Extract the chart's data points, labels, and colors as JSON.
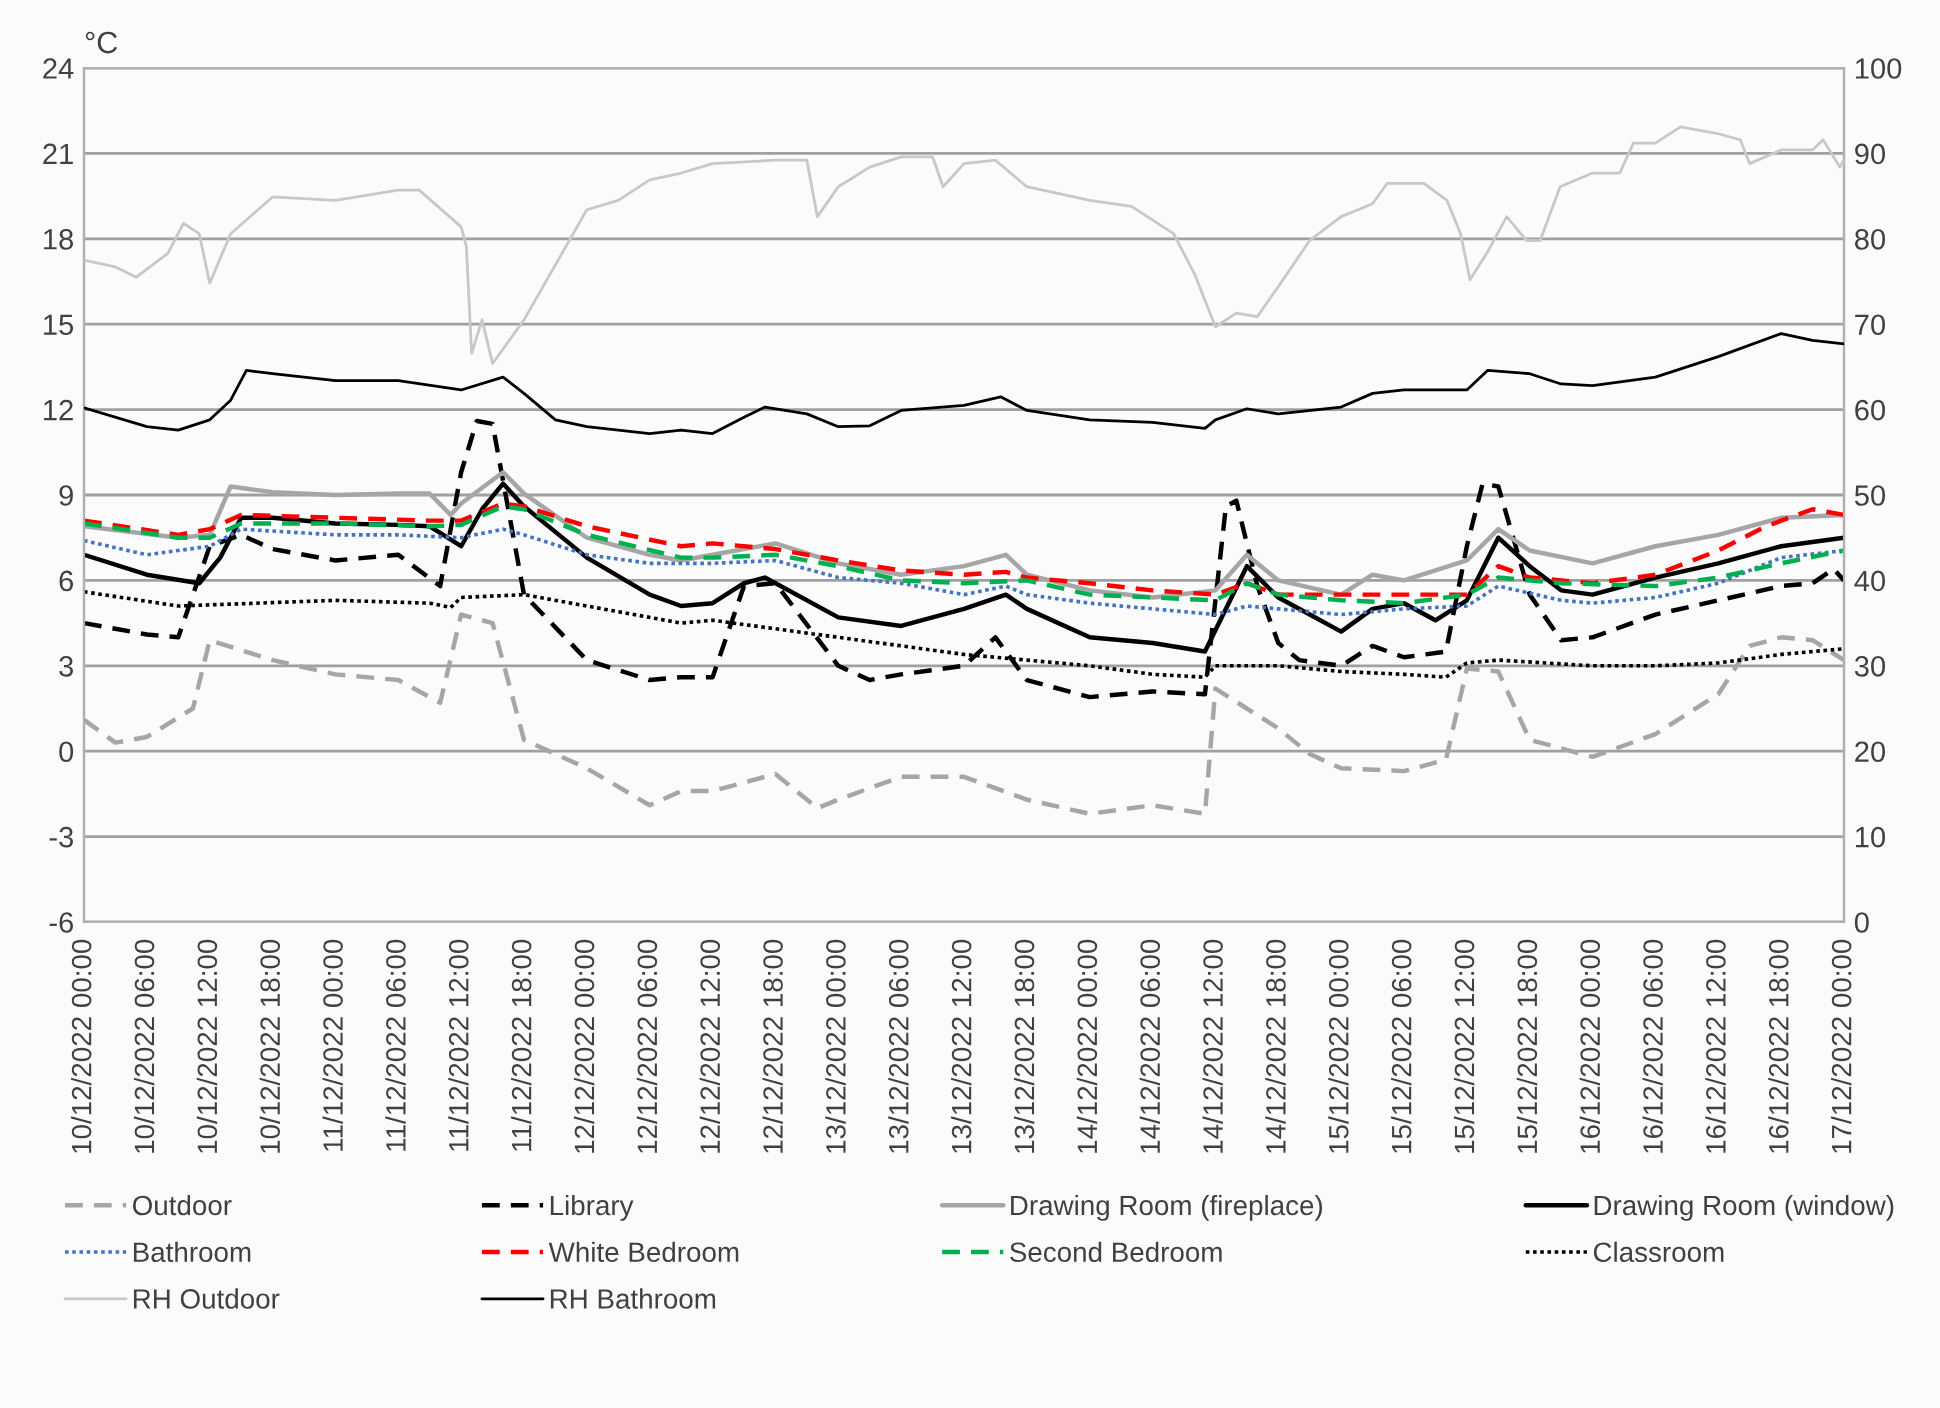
{
  "chart_data": {
    "type": "line",
    "ylabel": "°C",
    "xlim": [
      "2022-12-10T00:00",
      "2022-12-17T00:00"
    ],
    "xticks": [
      {
        "value": "2022-12-10T00:00",
        "label": "10/12/2022 00:00"
      },
      {
        "value": "2022-12-10T06:00",
        "label": "10/12/2022 06:00"
      },
      {
        "value": "2022-12-10T12:00",
        "label": "10/12/2022 12:00"
      },
      {
        "value": "2022-12-10T18:00",
        "label": "10/12/2022 18:00"
      },
      {
        "value": "2022-12-11T00:00",
        "label": "11/12/2022 00:00"
      },
      {
        "value": "2022-12-11T06:00",
        "label": "11/12/2022 06:00"
      },
      {
        "value": "2022-12-11T12:00",
        "label": "11/12/2022 12:00"
      },
      {
        "value": "2022-12-11T18:00",
        "label": "11/12/2022 18:00"
      },
      {
        "value": "2022-12-12T00:00",
        "label": "12/12/2022 00:00"
      },
      {
        "value": "2022-12-12T06:00",
        "label": "12/12/2022 06:00"
      },
      {
        "value": "2022-12-12T12:00",
        "label": "12/12/2022 12:00"
      },
      {
        "value": "2022-12-12T18:00",
        "label": "12/12/2022 18:00"
      },
      {
        "value": "2022-12-13T00:00",
        "label": "13/12/2022 00:00"
      },
      {
        "value": "2022-12-13T06:00",
        "label": "13/12/2022 06:00"
      },
      {
        "value": "2022-12-13T12:00",
        "label": "13/12/2022 12:00"
      },
      {
        "value": "2022-12-13T18:00",
        "label": "13/12/2022 18:00"
      },
      {
        "value": "2022-12-14T00:00",
        "label": "14/12/2022 00:00"
      },
      {
        "value": "2022-12-14T06:00",
        "label": "14/12/2022 06:00"
      },
      {
        "value": "2022-12-14T12:00",
        "label": "14/12/2022 12:00"
      },
      {
        "value": "2022-12-14T18:00",
        "label": "14/12/2022 18:00"
      },
      {
        "value": "2022-12-15T00:00",
        "label": "15/12/2022 00:00"
      },
      {
        "value": "2022-12-15T06:00",
        "label": "15/12/2022 06:00"
      },
      {
        "value": "2022-12-15T12:00",
        "label": "15/12/2022 12:00"
      },
      {
        "value": "2022-12-15T18:00",
        "label": "15/12/2022 18:00"
      },
      {
        "value": "2022-12-16T00:00",
        "label": "16/12/2022 00:00"
      },
      {
        "value": "2022-12-16T06:00",
        "label": "16/12/2022 06:00"
      },
      {
        "value": "2022-12-16T12:00",
        "label": "16/12/2022 12:00"
      },
      {
        "value": "2022-12-16T18:00",
        "label": "16/12/2022 18:00"
      },
      {
        "value": "2022-12-17T00:00",
        "label": "17/12/2022 00:00"
      }
    ],
    "ylim": [
      -6,
      24
    ],
    "yticks": [
      -6,
      -3,
      0,
      3,
      6,
      9,
      12,
      15,
      18,
      21,
      24
    ],
    "y2lim": [
      0,
      100
    ],
    "y2ticks": [
      0,
      10,
      20,
      30,
      40,
      50,
      60,
      70,
      80,
      90,
      100
    ],
    "grid": "y",
    "legend": "bottom",
    "series": [
      {
        "name": "Outdoor",
        "color": "#a6a6a6",
        "line_style": "dashed",
        "x": [
          "2022-12-10T00:00",
          "2022-12-10T03:00",
          "2022-12-10T06:00",
          "2022-12-10T10:24",
          "2022-12-10T12:00",
          "2022-12-10T18:00",
          "2022-12-11T00:00",
          "2022-12-11T06:00",
          "2022-12-11T10:00",
          "2022-12-11T12:00",
          "2022-12-11T15:00",
          "2022-12-11T18:00",
          "2022-12-12T00:00",
          "2022-12-12T06:00",
          "2022-12-12T09:00",
          "2022-12-12T12:00",
          "2022-12-12T18:00",
          "2022-12-12T22:00",
          "2022-12-13T00:00",
          "2022-12-13T06:00",
          "2022-12-13T12:00",
          "2022-12-13T18:00",
          "2022-12-14T00:00",
          "2022-12-14T06:00",
          "2022-12-14T11:00",
          "2022-12-14T12:00",
          "2022-12-14T15:00",
          "2022-12-14T18:00",
          "2022-12-14T21:00",
          "2022-12-15T00:00",
          "2022-12-15T06:00",
          "2022-12-15T10:00",
          "2022-12-15T12:00",
          "2022-12-15T15:00",
          "2022-12-15T18:00",
          "2022-12-15T21:00",
          "2022-12-16T00:00",
          "2022-12-16T06:00",
          "2022-12-16T12:00",
          "2022-12-16T15:00",
          "2022-12-16T18:00",
          "2022-12-16T21:00",
          "2022-12-17T00:00"
        ],
        "values": [
          1.1,
          0.3,
          0.5,
          1.5,
          3.9,
          3.2,
          2.7,
          2.5,
          1.7,
          4.8,
          4.5,
          0.4,
          -0.6,
          -1.9,
          -1.4,
          -1.4,
          -0.8,
          -2.0,
          -1.7,
          -0.9,
          -0.9,
          -1.7,
          -2.2,
          -1.9,
          -2.2,
          2.2,
          1.5,
          0.8,
          -0.1,
          -0.6,
          -0.7,
          -0.3,
          2.9,
          2.8,
          0.4,
          0.1,
          -0.2,
          0.6,
          2.0,
          3.7,
          4.0,
          3.9,
          3.2
        ]
      },
      {
        "name": "Library",
        "color": "#000000",
        "line_style": "dashed",
        "x": [
          "2022-12-10T00:00",
          "2022-12-10T06:00",
          "2022-12-10T09:00",
          "2022-12-10T12:00",
          "2022-12-10T15:00",
          "2022-12-10T18:00",
          "2022-12-11T00:00",
          "2022-12-11T06:00",
          "2022-12-11T10:00",
          "2022-12-11T12:00",
          "2022-12-11T13:30",
          "2022-12-11T15:00",
          "2022-12-11T18:00",
          "2022-12-12T00:00",
          "2022-12-12T06:00",
          "2022-12-12T09:00",
          "2022-12-12T12:00",
          "2022-12-12T15:00",
          "2022-12-12T18:00",
          "2022-12-13T00:00",
          "2022-12-13T03:00",
          "2022-12-13T06:00",
          "2022-12-13T12:00",
          "2022-12-13T15:00",
          "2022-12-13T18:00",
          "2022-12-14T00:00",
          "2022-12-14T06:00",
          "2022-12-14T11:00",
          "2022-12-14T13:00",
          "2022-12-14T14:00",
          "2022-12-14T16:00",
          "2022-12-14T18:00",
          "2022-12-14T20:00",
          "2022-12-15T00:00",
          "2022-12-15T03:00",
          "2022-12-15T06:00",
          "2022-12-15T10:00",
          "2022-12-15T12:00",
          "2022-12-15T13:30",
          "2022-12-15T15:00",
          "2022-12-15T18:00",
          "2022-12-15T21:00",
          "2022-12-16T00:00",
          "2022-12-16T06:00",
          "2022-12-16T12:00",
          "2022-12-16T18:00",
          "2022-12-16T21:00",
          "2022-12-16T23:00",
          "2022-12-17T00:00"
        ],
        "values": [
          4.5,
          4.1,
          4.0,
          7.2,
          7.6,
          7.1,
          6.7,
          6.9,
          5.8,
          9.8,
          11.6,
          11.5,
          5.5,
          3.2,
          2.5,
          2.6,
          2.6,
          5.8,
          5.9,
          3.0,
          2.5,
          2.7,
          3.0,
          4.0,
          2.5,
          1.9,
          2.1,
          2.0,
          8.6,
          8.8,
          5.8,
          3.8,
          3.2,
          3.0,
          3.7,
          3.3,
          3.5,
          7.2,
          9.4,
          9.3,
          5.5,
          3.9,
          4.0,
          4.8,
          5.3,
          5.8,
          5.9,
          6.4,
          6.0
        ]
      },
      {
        "name": "Drawing Room (fireplace)",
        "color": "#a6a6a6",
        "line_style": "solid",
        "x": [
          "2022-12-10T00:00",
          "2022-12-10T09:00",
          "2022-12-10T12:00",
          "2022-12-10T14:00",
          "2022-12-10T18:00",
          "2022-12-11T00:00",
          "2022-12-11T06:00",
          "2022-12-11T09:00",
          "2022-12-11T11:00",
          "2022-12-11T12:00",
          "2022-12-11T16:00",
          "2022-12-11T18:00",
          "2022-12-12T00:00",
          "2022-12-12T06:00",
          "2022-12-12T09:00",
          "2022-12-12T12:00",
          "2022-12-12T18:00",
          "2022-12-13T00:00",
          "2022-12-13T06:00",
          "2022-12-13T12:00",
          "2022-12-13T16:00",
          "2022-12-13T18:00",
          "2022-12-14T00:00",
          "2022-12-14T06:00",
          "2022-12-14T12:00",
          "2022-12-14T15:00",
          "2022-12-14T18:00",
          "2022-12-15T00:00",
          "2022-12-15T03:00",
          "2022-12-15T06:00",
          "2022-12-15T12:00",
          "2022-12-15T15:00",
          "2022-12-15T18:00",
          "2022-12-16T00:00",
          "2022-12-16T06:00",
          "2022-12-16T12:00",
          "2022-12-16T18:00",
          "2022-12-17T00:00"
        ],
        "values": [
          7.9,
          7.5,
          7.6,
          9.3,
          9.1,
          9.0,
          9.05,
          9.05,
          8.3,
          8.7,
          9.8,
          9.05,
          7.5,
          6.9,
          6.7,
          6.9,
          7.3,
          6.6,
          6.2,
          6.5,
          6.9,
          6.2,
          5.65,
          5.4,
          5.65,
          6.9,
          6.0,
          5.5,
          6.2,
          6.0,
          6.7,
          7.8,
          7.05,
          6.6,
          7.2,
          7.6,
          8.2,
          8.3
        ]
      },
      {
        "name": "Drawing Room (window)",
        "color": "#000000",
        "line_style": "solid",
        "x": [
          "2022-12-10T00:00",
          "2022-12-10T06:00",
          "2022-12-10T11:00",
          "2022-12-10T13:00",
          "2022-12-10T15:00",
          "2022-12-10T18:00",
          "2022-12-11T00:00",
          "2022-12-11T06:00",
          "2022-12-11T09:00",
          "2022-12-11T12:00",
          "2022-12-11T14:00",
          "2022-12-11T16:00",
          "2022-12-11T18:00",
          "2022-12-12T00:00",
          "2022-12-12T06:00",
          "2022-12-12T09:00",
          "2022-12-12T12:00",
          "2022-12-12T15:00",
          "2022-12-12T17:00",
          "2022-12-13T00:00",
          "2022-12-13T06:00",
          "2022-12-13T12:00",
          "2022-12-13T16:00",
          "2022-12-13T18:00",
          "2022-12-14T00:00",
          "2022-12-14T06:00",
          "2022-12-14T11:00",
          "2022-12-14T15:00",
          "2022-12-14T18:00",
          "2022-12-14T21:00",
          "2022-12-15T00:00",
          "2022-12-15T03:00",
          "2022-12-15T06:00",
          "2022-12-15T09:00",
          "2022-12-15T12:00",
          "2022-12-15T15:00",
          "2022-12-15T18:00",
          "2022-12-15T21:00",
          "2022-12-16T00:00",
          "2022-12-16T06:00",
          "2022-12-16T12:00",
          "2022-12-16T18:00",
          "2022-12-17T00:00"
        ],
        "values": [
          6.9,
          6.2,
          5.9,
          6.8,
          8.2,
          8.2,
          8.0,
          7.95,
          7.9,
          7.2,
          8.5,
          9.4,
          8.6,
          6.8,
          5.5,
          5.1,
          5.2,
          5.9,
          6.1,
          4.7,
          4.4,
          5.0,
          5.5,
          5.0,
          4.0,
          3.8,
          3.5,
          6.5,
          5.4,
          4.8,
          4.2,
          5.0,
          5.2,
          4.6,
          5.3,
          7.5,
          6.5,
          5.65,
          5.5,
          6.1,
          6.6,
          7.2,
          7.5
        ]
      },
      {
        "name": "Bathroom",
        "color": "#4472c4",
        "line_style": "dotted",
        "x": [
          "2022-12-10T00:00",
          "2022-12-10T06:00",
          "2022-12-10T12:00",
          "2022-12-10T15:00",
          "2022-12-11T00:00",
          "2022-12-11T06:00",
          "2022-12-11T12:00",
          "2022-12-11T16:00",
          "2022-12-11T18:00",
          "2022-12-12T00:00",
          "2022-12-12T06:00",
          "2022-12-12T12:00",
          "2022-12-12T18:00",
          "2022-12-13T00:00",
          "2022-12-13T06:00",
          "2022-12-13T12:00",
          "2022-12-13T16:00",
          "2022-12-13T18:00",
          "2022-12-14T00:00",
          "2022-12-14T06:00",
          "2022-12-14T12:00",
          "2022-12-14T15:00",
          "2022-12-14T18:00",
          "2022-12-15T00:00",
          "2022-12-15T06:00",
          "2022-12-15T12:00",
          "2022-12-15T15:00",
          "2022-12-15T21:00",
          "2022-12-16T00:00",
          "2022-12-16T06:00",
          "2022-12-16T12:00",
          "2022-12-16T18:00",
          "2022-12-17T00:00"
        ],
        "values": [
          7.4,
          6.9,
          7.2,
          7.8,
          7.6,
          7.6,
          7.5,
          7.8,
          7.6,
          6.9,
          6.6,
          6.6,
          6.7,
          6.1,
          5.9,
          5.5,
          5.8,
          5.5,
          5.2,
          5.0,
          4.8,
          5.1,
          5.0,
          4.8,
          5.0,
          5.1,
          5.8,
          5.3,
          5.2,
          5.4,
          5.9,
          6.8,
          7.05
        ]
      },
      {
        "name": "White Bedroom",
        "color": "#ff0000",
        "line_style": "dashed",
        "x": [
          "2022-12-10T00:00",
          "2022-12-10T09:00",
          "2022-12-10T12:00",
          "2022-12-10T15:00",
          "2022-12-11T00:00",
          "2022-12-11T09:00",
          "2022-12-11T12:00",
          "2022-12-11T16:00",
          "2022-12-11T18:00",
          "2022-12-12T00:00",
          "2022-12-12T09:00",
          "2022-12-12T12:00",
          "2022-12-12T18:00",
          "2022-12-13T00:00",
          "2022-12-13T06:00",
          "2022-12-13T12:00",
          "2022-12-13T16:00",
          "2022-12-13T18:00",
          "2022-12-14T00:00",
          "2022-12-14T06:00",
          "2022-12-14T12:00",
          "2022-12-14T15:00",
          "2022-12-14T18:00",
          "2022-12-15T00:00",
          "2022-12-15T06:00",
          "2022-12-15T12:00",
          "2022-12-15T15:00",
          "2022-12-15T18:00",
          "2022-12-16T00:00",
          "2022-12-16T06:00",
          "2022-12-16T12:00",
          "2022-12-16T16:00",
          "2022-12-16T18:00",
          "2022-12-16T21:00",
          "2022-12-17T00:00"
        ],
        "values": [
          8.1,
          7.6,
          7.8,
          8.3,
          8.2,
          8.1,
          8.1,
          8.7,
          8.6,
          7.9,
          7.2,
          7.3,
          7.1,
          6.7,
          6.35,
          6.2,
          6.3,
          6.1,
          5.9,
          5.65,
          5.5,
          5.9,
          5.5,
          5.5,
          5.5,
          5.5,
          6.5,
          6.1,
          5.9,
          6.2,
          7.05,
          7.8,
          8.1,
          8.5,
          8.3
        ]
      },
      {
        "name": "Second Bedroom",
        "color": "#00b050",
        "line_style": "dashed",
        "x": [
          "2022-12-10T00:00",
          "2022-12-10T09:00",
          "2022-12-10T12:00",
          "2022-12-10T15:00",
          "2022-12-11T00:00",
          "2022-12-11T09:00",
          "2022-12-11T12:00",
          "2022-12-11T16:00",
          "2022-12-11T18:00",
          "2022-12-12T00:00",
          "2022-12-12T09:00",
          "2022-12-12T12:00",
          "2022-12-12T18:00",
          "2022-12-13T00:00",
          "2022-12-13T06:00",
          "2022-12-13T12:00",
          "2022-12-13T18:00",
          "2022-12-14T00:00",
          "2022-12-14T06:00",
          "2022-12-14T12:00",
          "2022-12-14T15:00",
          "2022-12-14T18:00",
          "2022-12-15T00:00",
          "2022-12-15T06:00",
          "2022-12-15T12:00",
          "2022-12-15T15:00",
          "2022-12-15T21:00",
          "2022-12-16T06:00",
          "2022-12-16T12:00",
          "2022-12-16T18:00",
          "2022-12-17T00:00"
        ],
        "values": [
          8.0,
          7.5,
          7.5,
          8.0,
          8.0,
          7.9,
          7.95,
          8.6,
          8.5,
          7.6,
          6.8,
          6.8,
          6.9,
          6.5,
          6.0,
          5.9,
          6.0,
          5.5,
          5.4,
          5.3,
          5.9,
          5.5,
          5.3,
          5.2,
          5.5,
          6.1,
          5.9,
          5.8,
          6.1,
          6.6,
          7.05
        ]
      },
      {
        "name": "Classroom",
        "color": "#000000",
        "line_style": "dotted",
        "x": [
          "2022-12-10T00:00",
          "2022-12-10T09:00",
          "2022-12-11T00:00",
          "2022-12-11T09:00",
          "2022-12-11T11:00",
          "2022-12-11T12:00",
          "2022-12-11T18:00",
          "2022-12-12T00:00",
          "2022-12-12T09:00",
          "2022-12-12T12:00",
          "2022-12-13T00:00",
          "2022-12-13T12:00",
          "2022-12-14T00:00",
          "2022-12-14T06:00",
          "2022-12-14T11:00",
          "2022-12-14T12:00",
          "2022-12-14T18:00",
          "2022-12-15T00:00",
          "2022-12-15T06:00",
          "2022-12-15T10:00",
          "2022-12-15T12:00",
          "2022-12-15T15:00",
          "2022-12-16T00:00",
          "2022-12-16T06:00",
          "2022-12-16T12:00",
          "2022-12-16T18:00",
          "2022-12-17T00:00"
        ],
        "values": [
          5.6,
          5.1,
          5.3,
          5.2,
          5.05,
          5.4,
          5.5,
          5.1,
          4.5,
          4.6,
          4.0,
          3.4,
          3.0,
          2.7,
          2.6,
          3.0,
          3.0,
          2.8,
          2.7,
          2.6,
          3.1,
          3.2,
          3.0,
          3.0,
          3.1,
          3.4,
          3.6
        ]
      },
      {
        "name": "RH Outdoor",
        "color": "#c8c8c8",
        "line_style": "solid",
        "axis": "y2",
        "x": [
          "2022-12-10T00:00",
          "2022-12-10T03:00",
          "2022-12-10T05:00",
          "2022-12-10T08:00",
          "2022-12-10T09:30",
          "2022-12-10T11:00",
          "2022-12-10T12:00",
          "2022-12-10T14:00",
          "2022-12-10T18:00",
          "2022-12-11T00:00",
          "2022-12-11T06:00",
          "2022-12-11T08:00",
          "2022-12-11T12:00",
          "2022-12-11T12:30",
          "2022-12-11T13:00",
          "2022-12-11T14:00",
          "2022-12-11T15:00",
          "2022-12-11T18:00",
          "2022-12-12T00:00",
          "2022-12-12T03:00",
          "2022-12-12T06:00",
          "2022-12-12T09:00",
          "2022-12-12T12:00",
          "2022-12-12T18:00",
          "2022-12-12T21:00",
          "2022-12-12T22:00",
          "2022-12-13T00:00",
          "2022-12-13T03:00",
          "2022-12-13T06:00",
          "2022-12-13T09:00",
          "2022-12-13T10:00",
          "2022-12-13T12:00",
          "2022-12-13T15:00",
          "2022-12-13T18:00",
          "2022-12-14T00:00",
          "2022-12-14T04:00",
          "2022-12-14T08:00",
          "2022-12-14T10:00",
          "2022-12-14T12:00",
          "2022-12-14T14:00",
          "2022-12-14T16:00",
          "2022-12-14T18:00",
          "2022-12-14T21:00",
          "2022-12-15T00:00",
          "2022-12-15T03:00",
          "2022-12-15T04:24",
          "2022-12-15T07:54",
          "2022-12-15T10:06",
          "2022-12-15T11:24",
          "2022-12-15T12:18",
          "2022-12-15T13:54",
          "2022-12-15T15:48",
          "2022-12-15T17:42",
          "2022-12-15T19:00",
          "2022-12-15T20:54",
          "2022-12-16T00:00",
          "2022-12-16T02:36",
          "2022-12-16T03:54",
          "2022-12-16T06:00",
          "2022-12-16T08:24",
          "2022-12-16T12:00",
          "2022-12-16T14:06",
          "2022-12-16T15:00",
          "2022-12-16T18:00",
          "2022-12-16T21:00",
          "2022-12-16T22:00",
          "2022-12-16T23:36",
          "2022-12-17T00:00"
        ],
        "values": [
          77.5,
          76.7,
          75.5,
          78.3,
          81.8,
          80.6,
          74.8,
          80.6,
          84.9,
          84.5,
          85.7,
          85.7,
          81.4,
          79.1,
          66.6,
          70.5,
          65.4,
          70.5,
          83.4,
          84.5,
          86.9,
          87.7,
          88.8,
          89.2,
          89.2,
          82.6,
          86.1,
          88.4,
          89.6,
          89.6,
          86.1,
          88.8,
          89.2,
          86.1,
          84.5,
          83.8,
          80.6,
          75.9,
          69.7,
          71.3,
          70.9,
          74.4,
          79.8,
          82.6,
          84.1,
          86.5,
          86.5,
          84.5,
          80.6,
          75.2,
          78.3,
          82.6,
          79.8,
          79.8,
          86.1,
          87.7,
          87.7,
          91.2,
          91.2,
          93.1,
          92.3,
          91.6,
          88.8,
          90.4,
          90.4,
          91.6,
          88.4,
          89.2
        ]
      },
      {
        "name": "RH Bathroom",
        "color": "#000000",
        "line_style": "solid",
        "axis": "y2",
        "x": [
          "2022-12-10T00:00",
          "2022-12-10T06:00",
          "2022-12-10T09:00",
          "2022-12-10T12:00",
          "2022-12-10T14:00",
          "2022-12-10T15:30",
          "2022-12-10T18:00",
          "2022-12-11T00:00",
          "2022-12-11T06:00",
          "2022-12-11T12:00",
          "2022-12-11T16:00",
          "2022-12-11T18:00",
          "2022-12-11T21:00",
          "2022-12-12T00:00",
          "2022-12-12T06:00",
          "2022-12-12T09:00",
          "2022-12-12T12:00",
          "2022-12-12T15:00",
          "2022-12-12T17:00",
          "2022-12-12T21:00",
          "2022-12-13T00:00",
          "2022-12-13T03:00",
          "2022-12-13T06:00",
          "2022-12-13T12:00",
          "2022-12-13T15:30",
          "2022-12-13T18:00",
          "2022-12-14T00:00",
          "2022-12-14T06:00",
          "2022-12-14T11:00",
          "2022-12-14T12:00",
          "2022-12-14T15:00",
          "2022-12-14T18:00",
          "2022-12-15T00:00",
          "2022-12-15T03:00",
          "2022-12-15T06:00",
          "2022-12-15T12:00",
          "2022-12-15T14:00",
          "2022-12-15T18:00",
          "2022-12-15T21:00",
          "2022-12-16T00:00",
          "2022-12-16T06:00",
          "2022-12-16T12:00",
          "2022-12-16T18:00",
          "2022-12-16T21:00",
          "2022-12-17T00:00"
        ],
        "values": [
          60.2,
          58.0,
          57.6,
          58.8,
          61.1,
          64.6,
          64.2,
          63.4,
          63.4,
          62.3,
          63.8,
          61.9,
          58.8,
          58.0,
          57.2,
          57.6,
          57.2,
          59.1,
          60.3,
          59.5,
          58.0,
          58.1,
          59.9,
          60.5,
          61.5,
          59.9,
          58.8,
          58.5,
          57.8,
          58.8,
          60.1,
          59.5,
          60.3,
          61.9,
          62.3,
          62.3,
          64.6,
          64.2,
          63.0,
          62.8,
          63.8,
          66.2,
          68.9,
          68.1,
          67.7
        ]
      }
    ]
  }
}
